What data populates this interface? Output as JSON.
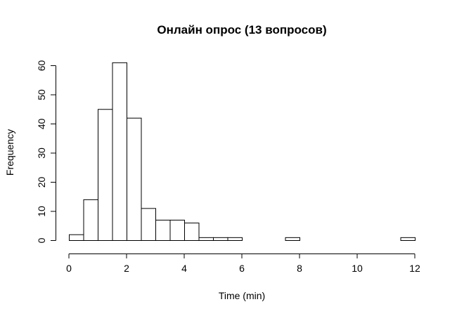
{
  "chart_data": {
    "type": "bar",
    "subtype": "histogram",
    "title": "Онлайн опрос (13 вопросов)",
    "xlabel": "Time (min)",
    "ylabel": "Frequency",
    "xlim": [
      0,
      12
    ],
    "ylim": [
      0,
      60
    ],
    "xticks": [
      0,
      2,
      4,
      6,
      8,
      10,
      12
    ],
    "yticks": [
      0,
      10,
      20,
      30,
      40,
      50,
      60
    ],
    "bin_width": 0.5,
    "bin_edges": [
      0,
      0.5,
      1,
      1.5,
      2,
      2.5,
      3,
      3.5,
      4,
      4.5,
      5,
      5.5,
      6,
      6.5,
      7,
      7.5,
      8,
      8.5,
      9,
      9.5,
      10,
      10.5,
      11,
      11.5,
      12
    ],
    "values": [
      2,
      14,
      45,
      61,
      42,
      11,
      7,
      7,
      6,
      1,
      1,
      1,
      0,
      0,
      0,
      1,
      0,
      0,
      0,
      0,
      0,
      0,
      0,
      1
    ],
    "grid": false,
    "legend": "none"
  }
}
